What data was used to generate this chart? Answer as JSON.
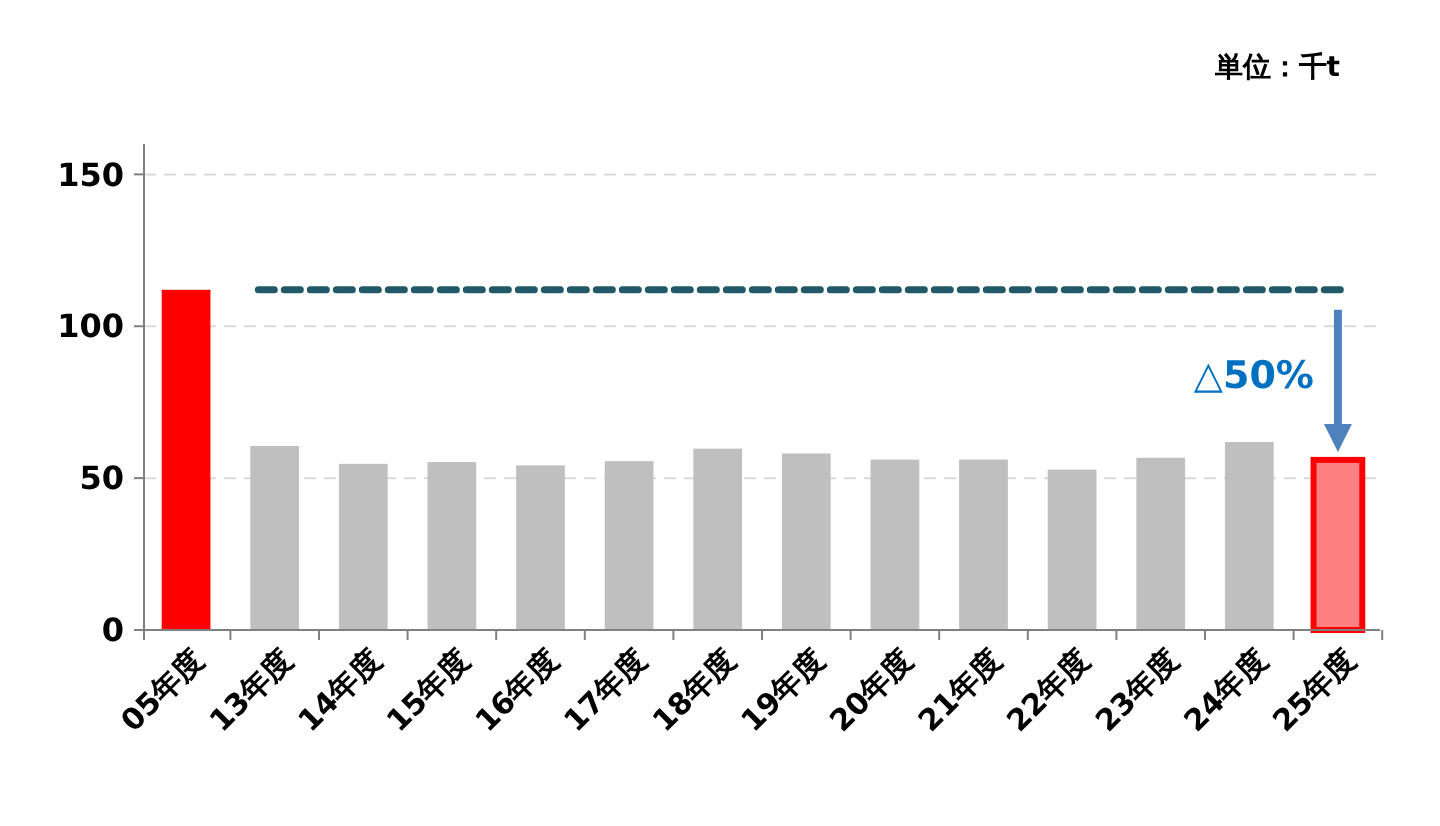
{
  "chart_data": {
    "type": "bar",
    "categories": [
      "05年度",
      "13年度",
      "14年度",
      "15年度",
      "16年度",
      "17年度",
      "18年度",
      "19年度",
      "20年度",
      "21年度",
      "22年度",
      "23年度",
      "24年度",
      "25年度"
    ],
    "values": [
      112,
      60.6,
      54.7,
      55.3,
      54.2,
      55.6,
      59.7,
      58.1,
      56.1,
      56.1,
      52.8,
      56.7,
      61.9,
      56
    ],
    "colors": [
      "#ff0000",
      "#bfbfbf",
      "#bfbfbf",
      "#bfbfbf",
      "#bfbfbf",
      "#bfbfbf",
      "#bfbfbf",
      "#bfbfbf",
      "#bfbfbf",
      "#bfbfbf",
      "#bfbfbf",
      "#bfbfbf",
      "#bfbfbf",
      "#ff8080"
    ],
    "ylim": [
      0,
      160
    ],
    "yticks": [
      0,
      50,
      100,
      150
    ],
    "grid": "y",
    "ref_lines": [
      {
        "axis": "y",
        "value": 112,
        "color": "#215968",
        "line_style": "dashed"
      }
    ],
    "annotations": [
      "単位：千t",
      "△50%"
    ]
  }
}
